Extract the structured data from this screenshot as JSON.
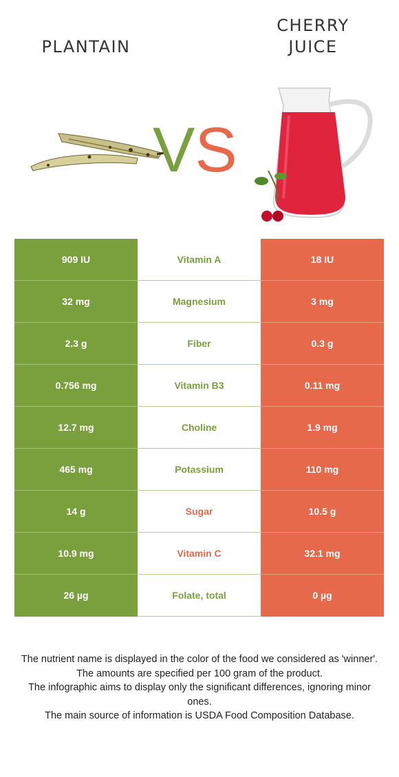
{
  "foods": {
    "left": {
      "name": "PLANTAIN",
      "color": "#7aa03d"
    },
    "right": {
      "name": "CHERRY\nJUICE",
      "color": "#e5694a"
    }
  },
  "vs": {
    "v": "V",
    "s": "S"
  },
  "rows": [
    {
      "left": "909 IU",
      "nutrient": "Vitamin A",
      "right": "18 IU",
      "winner": "left"
    },
    {
      "left": "32 mg",
      "nutrient": "Magnesium",
      "right": "3 mg",
      "winner": "left"
    },
    {
      "left": "2.3 g",
      "nutrient": "Fiber",
      "right": "0.3 g",
      "winner": "left"
    },
    {
      "left": "0.756 mg",
      "nutrient": "Vitamin B3",
      "right": "0.11 mg",
      "winner": "left"
    },
    {
      "left": "12.7 mg",
      "nutrient": "Choline",
      "right": "1.9 mg",
      "winner": "left"
    },
    {
      "left": "465 mg",
      "nutrient": "Potassium",
      "right": "110 mg",
      "winner": "left"
    },
    {
      "left": "14 g",
      "nutrient": "Sugar",
      "right": "10.5 g",
      "winner": "right"
    },
    {
      "left": "10.9 mg",
      "nutrient": "Vitamin C",
      "right": "32.1 mg",
      "winner": "right"
    },
    {
      "left": "26 µg",
      "nutrient": "Folate, total",
      "right": "0 µg",
      "winner": "left"
    }
  ],
  "footnotes": [
    "The nutrient name is displayed in the color of the food we considered as 'winner'.",
    "The amounts are specified per 100 gram of the product.",
    "The infographic aims to display only the significant differences, ignoring minor ones.",
    "The main source of information is USDA Food Composition Database."
  ]
}
